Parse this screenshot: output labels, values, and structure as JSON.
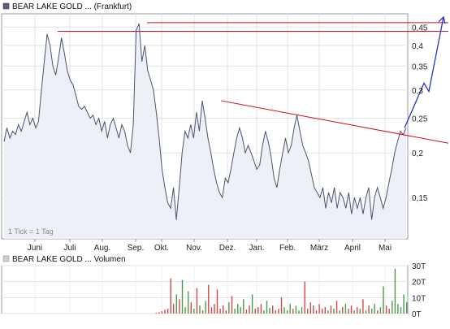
{
  "price_panel": {
    "title": "BEAR LAKE GOLD ... (Frankfurt)",
    "tick_note": "1 Tick = 1 Tag",
    "y_ticks": [
      "0,45",
      "0,4",
      "0,35",
      "0,3",
      "0,25",
      "0,2",
      "0,15"
    ],
    "x_ticks": [
      "Juni",
      "Juli",
      "Aug.",
      "Sep.",
      "Okt.",
      "Nov.",
      "Dez.",
      "Jan.",
      "Feb.",
      "März",
      "April",
      "Mai"
    ]
  },
  "volume_panel": {
    "title": "BEAR LAKE GOLD ... Volumen",
    "y_ticks": [
      "30T",
      "20T",
      "10T",
      "0T"
    ]
  },
  "colors": {
    "price_line": "#4a5470",
    "price_fill": "#eef0f7",
    "trend_line": "#d01020",
    "projection": "#2a35b8",
    "volume_up": "#4c9a4c",
    "volume_down": "#d04848"
  },
  "chart_data": [
    {
      "type": "line",
      "title": "BEAR LAKE GOLD ... (Frankfurt)",
      "y_scale": "log",
      "ylim": [
        0.115,
        0.49
      ],
      "y_ticks": [
        0.45,
        0.4,
        0.35,
        0.3,
        0.25,
        0.2,
        0.15
      ],
      "x_ticks": [
        "Juni",
        "Juli",
        "Aug.",
        "Sep.",
        "Okt.",
        "Nov.",
        "Dez.",
        "Jan.",
        "Feb.",
        "März",
        "April",
        "Mai"
      ],
      "grid": true,
      "series": [
        {
          "values": [
            0.215,
            0.235,
            0.22,
            0.23,
            0.225,
            0.24,
            0.23,
            0.245,
            0.26,
            0.24,
            0.25,
            0.235,
            0.245,
            0.3,
            0.36,
            0.43,
            0.4,
            0.35,
            0.33,
            0.37,
            0.42,
            0.38,
            0.34,
            0.32,
            0.31,
            0.29,
            0.27,
            0.265,
            0.27,
            0.26,
            0.25,
            0.255,
            0.24,
            0.25,
            0.23,
            0.245,
            0.22,
            0.24,
            0.25,
            0.235,
            0.22,
            0.24,
            0.23,
            0.21,
            0.2,
            0.24,
            0.44,
            0.46,
            0.36,
            0.4,
            0.34,
            0.32,
            0.3,
            0.26,
            0.22,
            0.18,
            0.16,
            0.145,
            0.14,
            0.16,
            0.13,
            0.16,
            0.2,
            0.23,
            0.22,
            0.24,
            0.22,
            0.26,
            0.23,
            0.28,
            0.25,
            0.22,
            0.2,
            0.18,
            0.165,
            0.155,
            0.15,
            0.17,
            0.165,
            0.18,
            0.2,
            0.22,
            0.235,
            0.22,
            0.2,
            0.21,
            0.2,
            0.19,
            0.18,
            0.185,
            0.21,
            0.23,
            0.215,
            0.195,
            0.17,
            0.16,
            0.18,
            0.2,
            0.22,
            0.2,
            0.21,
            0.235,
            0.255,
            0.23,
            0.21,
            0.2,
            0.19,
            0.175,
            0.16,
            0.155,
            0.15,
            0.16,
            0.14,
            0.155,
            0.145,
            0.16,
            0.14,
            0.155,
            0.15,
            0.14,
            0.155,
            0.135,
            0.15,
            0.14,
            0.15,
            0.135,
            0.15,
            0.16,
            0.13,
            0.15,
            0.16,
            0.15,
            0.14,
            0.15,
            0.165,
            0.18,
            0.2,
            0.215,
            0.23,
            0.225,
            0.235
          ]
        }
      ],
      "trend_lines": [
        {
          "from": [
            "Juli",
            0.438
          ],
          "to": [
            "Mai",
            0.438
          ]
        },
        {
          "from": [
            "Okt.",
            0.463
          ],
          "to": [
            "Mai",
            0.463
          ]
        },
        {
          "from": [
            "Dez.",
            0.28
          ],
          "to": [
            "Mai",
            0.213
          ]
        },
        {
          "from": [
            "Mai",
            0.235
          ],
          "to": [
            "Mai",
            0.48
          ]
        }
      ]
    },
    {
      "type": "bar",
      "title": "BEAR LAKE GOLD ... Volumen",
      "ylim": [
        0,
        30000
      ],
      "y_ticks": [
        "30T",
        "20T",
        "10T",
        "0T"
      ],
      "series": [
        {
          "name": "",
          "values": [
            0,
            0,
            0,
            0,
            0,
            0,
            0,
            0,
            0,
            0,
            0,
            0,
            0,
            0,
            0,
            0,
            0,
            0,
            0,
            0,
            0,
            0,
            0,
            0,
            0,
            0,
            0,
            0,
            0,
            0,
            0,
            0,
            0,
            0,
            0,
            0,
            0,
            0,
            0,
            0,
            0,
            0,
            0,
            0,
            0,
            0,
            0,
            0,
            0,
            0,
            0,
            0,
            500,
            800,
            1500,
            2500,
            3000,
            22000,
            6000,
            12000,
            9000,
            21000,
            4000,
            14000,
            7000,
            3000,
            16000,
            5000,
            2000,
            8000,
            18000,
            4000,
            6000,
            15000,
            3000,
            5000,
            2000,
            7000,
            11000,
            3000,
            6000,
            4000,
            9000,
            2500,
            5000,
            12000,
            3000,
            4000,
            6000,
            2000,
            8000,
            3500,
            5000,
            2000,
            3000,
            10000,
            4000,
            2000,
            6000,
            3000,
            5000,
            2000,
            4000,
            20000,
            3000,
            7000,
            5000,
            2000,
            6000,
            3000,
            4000,
            2000,
            5000,
            3000,
            8000,
            2000,
            4000,
            6000,
            3000,
            5000,
            2000,
            4000,
            3000,
            9000,
            2000,
            5000,
            3000,
            6000,
            2000,
            4000,
            17000,
            5000,
            3000,
            8000,
            28000,
            6000,
            4000,
            12000,
            7000
          ]
        }
      ]
    }
  ]
}
